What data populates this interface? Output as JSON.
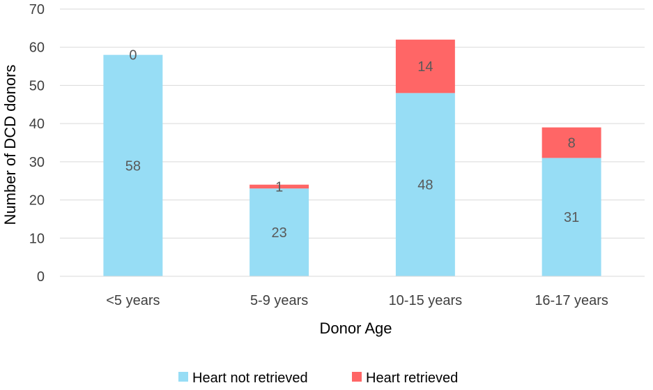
{
  "chart_data": {
    "type": "bar",
    "stacked": true,
    "categories": [
      "<5 years",
      "5-9 years",
      "10-15 years",
      "16-17 years"
    ],
    "series": [
      {
        "name": "Heart not retrieved",
        "values": [
          58,
          23,
          48,
          31
        ],
        "color": "#97DDF5"
      },
      {
        "name": "Heart retrieved",
        "values": [
          0,
          1,
          14,
          8
        ],
        "color": "#FF6666"
      }
    ],
    "title": "",
    "xlabel": "Donor Age",
    "ylabel": "Number of DCD donors",
    "ylim": [
      0,
      70
    ],
    "yticks": [
      0,
      10,
      20,
      30,
      40,
      50,
      60,
      70
    ],
    "grid": true,
    "legend": "bottom",
    "data_labels": true
  }
}
